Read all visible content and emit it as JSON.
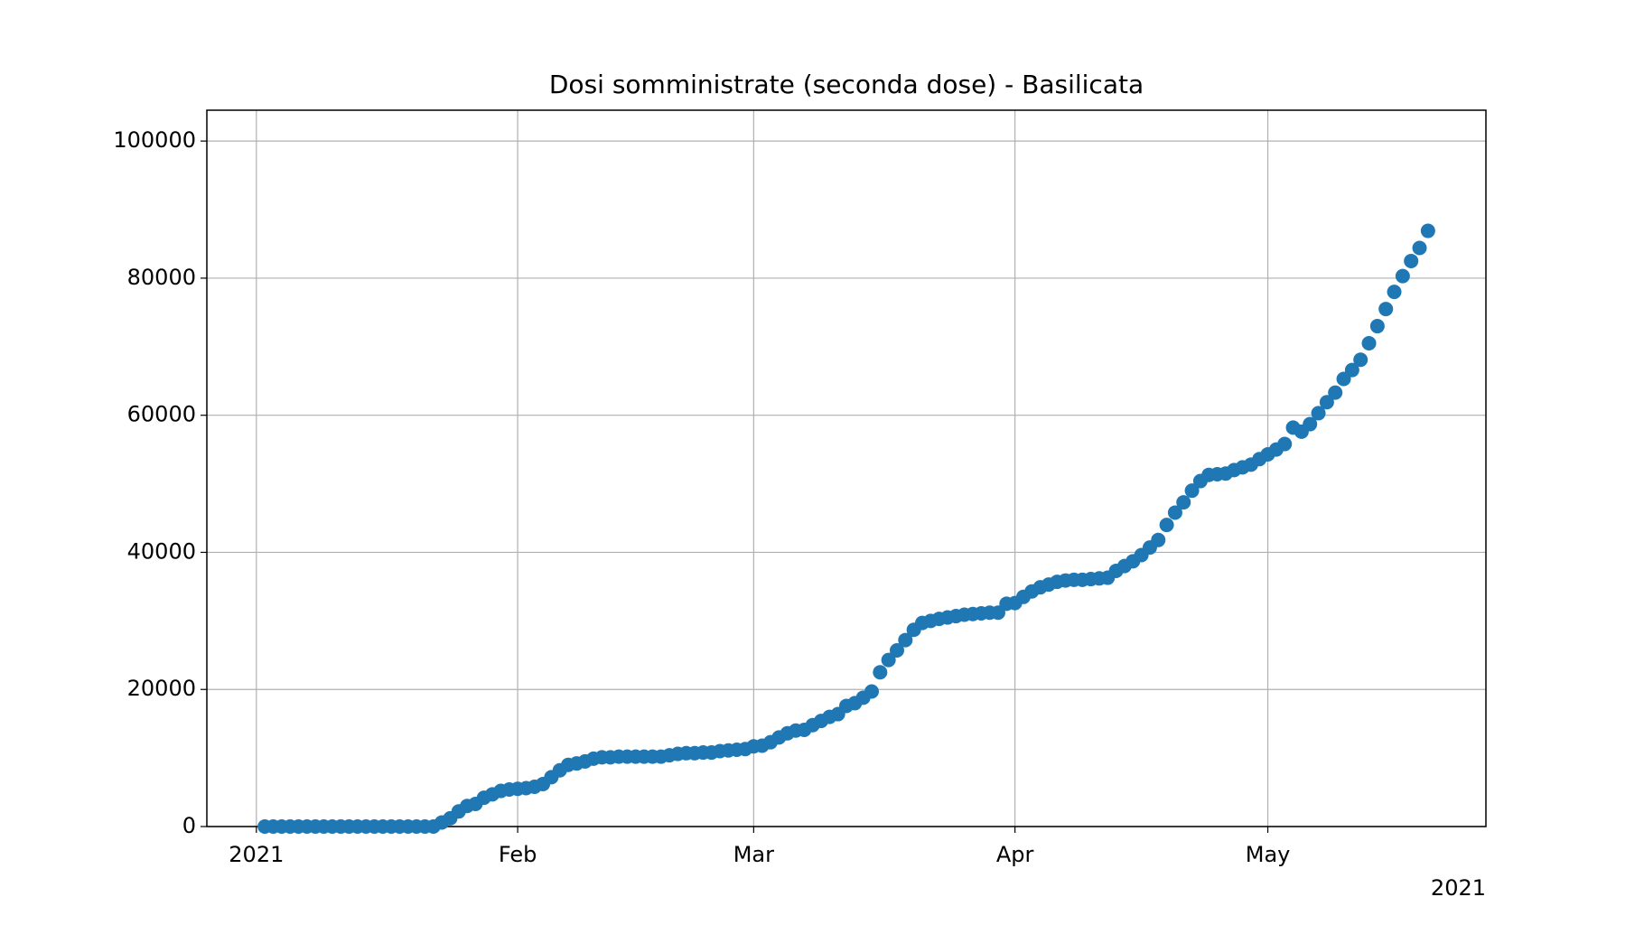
{
  "chart_data": {
    "type": "scatter",
    "title": "Dosi somministrate (seconda dose) - Basilicata",
    "x": [
      1,
      2,
      3,
      4,
      5,
      6,
      7,
      8,
      9,
      10,
      11,
      12,
      13,
      14,
      15,
      16,
      17,
      18,
      19,
      20,
      21,
      22,
      23,
      24,
      25,
      26,
      27,
      28,
      29,
      30,
      31,
      32,
      33,
      34,
      35,
      36,
      37,
      38,
      39,
      40,
      41,
      42,
      43,
      44,
      45,
      46,
      47,
      48,
      49,
      50,
      51,
      52,
      53,
      54,
      55,
      56,
      57,
      58,
      59,
      60,
      61,
      62,
      63,
      64,
      65,
      66,
      67,
      68,
      69,
      70,
      71,
      72,
      73,
      74,
      75,
      76,
      77,
      78,
      79,
      80,
      81,
      82,
      83,
      84,
      85,
      86,
      87,
      88,
      89,
      90,
      91,
      92,
      93,
      94,
      95,
      96,
      97,
      98,
      99,
      100,
      101,
      102,
      103,
      104,
      105,
      106,
      107,
      108,
      109,
      110,
      111,
      112,
      113,
      114,
      115,
      116,
      117,
      118,
      119,
      120,
      121,
      122,
      123,
      124,
      125,
      126,
      127,
      128,
      129,
      130,
      131,
      132,
      133,
      134,
      135,
      136,
      137,
      138,
      139
    ],
    "series": [
      {
        "name": "seconda dose",
        "color": "#1f77b4",
        "values": [
          0,
          0,
          0,
          0,
          0,
          0,
          0,
          0,
          0,
          0,
          0,
          0,
          0,
          0,
          0,
          0,
          0,
          0,
          0,
          0,
          0,
          600,
          1200,
          2200,
          3000,
          3300,
          4200,
          4700,
          5200,
          5400,
          5500,
          5600,
          5800,
          6200,
          7200,
          8200,
          9000,
          9200,
          9500,
          9900,
          10100,
          10100,
          10200,
          10200,
          10200,
          10200,
          10200,
          10200,
          10400,
          10600,
          10700,
          10700,
          10800,
          10800,
          11000,
          11100,
          11200,
          11300,
          11700,
          11800,
          12300,
          13000,
          13600,
          14000,
          14100,
          14800,
          15400,
          16000,
          16400,
          17600,
          18000,
          18800,
          19700,
          22500,
          24300,
          25700,
          27200,
          28700,
          29700,
          30000,
          30300,
          30500,
          30700,
          30900,
          31000,
          31100,
          31200,
          31200,
          32500,
          32600,
          33500,
          34300,
          34900,
          35300,
          35700,
          35900,
          36000,
          36000,
          36100,
          36200,
          36300,
          37300,
          38000,
          38700,
          39600,
          40700,
          41800,
          44000,
          45800,
          47300,
          49000,
          50400,
          51300,
          51400,
          51500,
          52000,
          52400,
          52800,
          53600,
          54300,
          55000,
          55800,
          58200,
          57600,
          58700,
          60300,
          61900,
          63300,
          65300,
          66600,
          68100,
          70500,
          73000,
          75500,
          78000,
          80300,
          82500,
          84400,
          86900
        ]
      }
    ],
    "xlim": [
      -5.875,
      145.875
    ],
    "xticks": [
      {
        "value": 0,
        "label": "2021"
      },
      {
        "value": 31,
        "label": "Feb"
      },
      {
        "value": 59,
        "label": "Mar"
      },
      {
        "value": 90,
        "label": "Apr"
      },
      {
        "value": 120,
        "label": "May"
      }
    ],
    "x_offset_label": "2021",
    "ylim": [
      0,
      104500
    ],
    "yticks": [
      0,
      20000,
      40000,
      60000,
      80000,
      100000
    ],
    "grid": true
  }
}
